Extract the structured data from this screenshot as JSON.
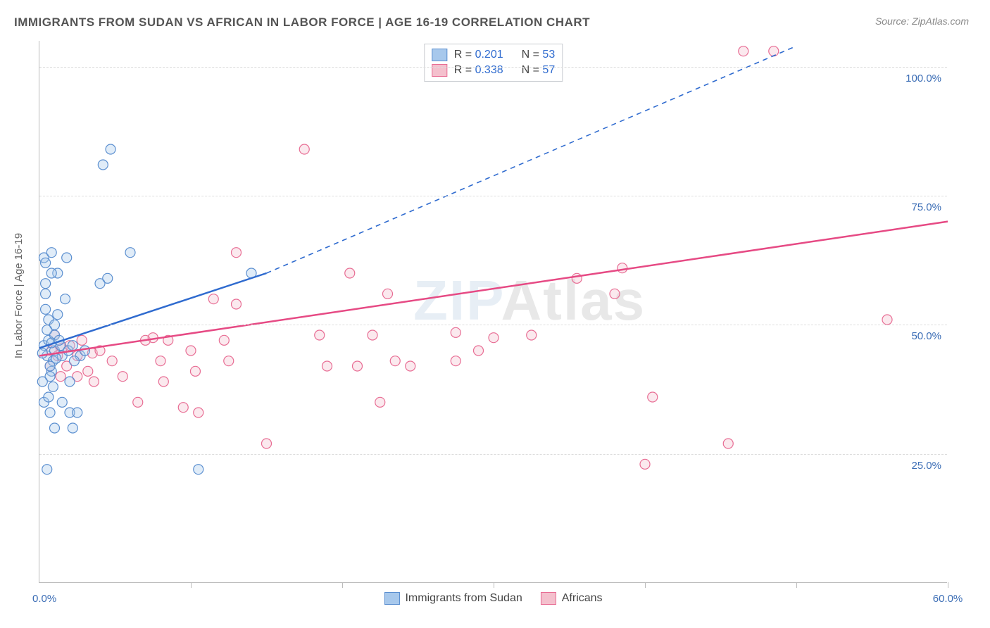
{
  "title": "IMMIGRANTS FROM SUDAN VS AFRICAN IN LABOR FORCE | AGE 16-19 CORRELATION CHART",
  "source": "Source: ZipAtlas.com",
  "ylabel": "In Labor Force | Age 16-19",
  "watermark_a": "ZIP",
  "watermark_b": "Atlas",
  "chart": {
    "type": "scatter",
    "xlim": [
      0,
      60
    ],
    "ylim": [
      0,
      105
    ],
    "x_ticks": [
      0,
      10,
      20,
      30,
      40,
      50,
      60
    ],
    "y_gridlines": [
      25,
      50,
      75,
      100
    ],
    "x_labels": [
      {
        "v": 0,
        "t": "0.0%"
      },
      {
        "v": 60,
        "t": "60.0%"
      }
    ],
    "y_labels": [
      {
        "v": 25,
        "t": "25.0%"
      },
      {
        "v": 50,
        "t": "50.0%"
      },
      {
        "v": 75,
        "t": "75.0%"
      },
      {
        "v": 100,
        "t": "100.0%"
      }
    ],
    "background_color": "#ffffff",
    "grid_color": "#dddddd",
    "marker_radius": 7,
    "series": [
      {
        "name": "Immigrants from Sudan",
        "key": "sudan",
        "color_fill": "#a7c8ec",
        "color_stroke": "#5b8fd0",
        "r_label": "0.201",
        "n_label": "53",
        "trend": {
          "x1": 0,
          "y1": 45.5,
          "x2": 15,
          "y2": 60,
          "dash_to_x": 50,
          "dash_to_y": 104,
          "color": "#2f6bcf",
          "width": 2.5
        },
        "points": [
          [
            0.3,
            46
          ],
          [
            0.5,
            44
          ],
          [
            0.6,
            47
          ],
          [
            0.8,
            41
          ],
          [
            0.9,
            43
          ],
          [
            1.0,
            45
          ],
          [
            1.0,
            48
          ],
          [
            0.6,
            51
          ],
          [
            0.4,
            53
          ],
          [
            1.2,
            52
          ],
          [
            0.7,
            40
          ],
          [
            0.9,
            38
          ],
          [
            1.5,
            44
          ],
          [
            1.4,
            46
          ],
          [
            0.3,
            63
          ],
          [
            0.8,
            64
          ],
          [
            1.8,
            63
          ],
          [
            1.2,
            60
          ],
          [
            1.9,
            45
          ],
          [
            2.2,
            46
          ],
          [
            2.0,
            39
          ],
          [
            2.0,
            33
          ],
          [
            2.5,
            33
          ],
          [
            2.7,
            44
          ],
          [
            0.3,
            35
          ],
          [
            0.7,
            33
          ],
          [
            1.5,
            35
          ],
          [
            1.0,
            30
          ],
          [
            0.5,
            22
          ],
          [
            2.2,
            30
          ],
          [
            4.5,
            59
          ],
          [
            4.7,
            84
          ],
          [
            4.2,
            81
          ],
          [
            4.0,
            58
          ],
          [
            6.0,
            64
          ],
          [
            10.5,
            22
          ],
          [
            14.0,
            60
          ],
          [
            0.4,
            56
          ],
          [
            1.7,
            55
          ],
          [
            0.8,
            46.5
          ],
          [
            1.1,
            43.5
          ],
          [
            0.2,
            44.5
          ],
          [
            0.5,
            49
          ],
          [
            0.7,
            42
          ],
          [
            1.0,
            50
          ],
          [
            0.6,
            36
          ],
          [
            1.3,
            47
          ],
          [
            2.3,
            43
          ],
          [
            3.0,
            45
          ],
          [
            0.8,
            60
          ],
          [
            0.4,
            62
          ],
          [
            0.4,
            58
          ],
          [
            0.2,
            39
          ]
        ]
      },
      {
        "name": "Africans",
        "key": "africans",
        "color_fill": "#f4c0cd",
        "color_stroke": "#e86d94",
        "r_label": "0.338",
        "n_label": "57",
        "trend": {
          "x1": 0,
          "y1": 44,
          "x2": 60,
          "y2": 70,
          "color": "#e64a84",
          "width": 2.5
        },
        "points": [
          [
            0.8,
            45
          ],
          [
            1.2,
            44
          ],
          [
            1.5,
            45.5
          ],
          [
            1.0,
            48
          ],
          [
            2.0,
            46
          ],
          [
            2.5,
            44
          ],
          [
            2.5,
            40
          ],
          [
            3.2,
            41
          ],
          [
            3.6,
            39
          ],
          [
            3.5,
            44.5
          ],
          [
            4.0,
            45
          ],
          [
            4.8,
            43
          ],
          [
            5.5,
            40
          ],
          [
            6.5,
            35
          ],
          [
            7.0,
            47
          ],
          [
            7.5,
            47.5
          ],
          [
            8.0,
            43
          ],
          [
            8.2,
            39
          ],
          [
            8.5,
            47
          ],
          [
            9.5,
            34
          ],
          [
            10.0,
            45
          ],
          [
            10.3,
            41
          ],
          [
            10.5,
            33
          ],
          [
            11.5,
            55
          ],
          [
            12.2,
            47
          ],
          [
            12.5,
            43
          ],
          [
            13.0,
            54
          ],
          [
            13.0,
            64
          ],
          [
            15.0,
            27
          ],
          [
            17.5,
            84
          ],
          [
            18.5,
            48
          ],
          [
            19.0,
            42
          ],
          [
            20.5,
            60
          ],
          [
            21.0,
            42
          ],
          [
            22.5,
            35
          ],
          [
            22.0,
            48
          ],
          [
            23.0,
            56
          ],
          [
            23.5,
            43
          ],
          [
            24.5,
            42
          ],
          [
            27.5,
            43
          ],
          [
            27.5,
            48.5
          ],
          [
            29.0,
            45
          ],
          [
            30.0,
            47.5
          ],
          [
            32.5,
            48
          ],
          [
            35.5,
            59
          ],
          [
            38.0,
            56
          ],
          [
            38.5,
            61
          ],
          [
            40.0,
            23
          ],
          [
            40.5,
            36
          ],
          [
            45.5,
            27
          ],
          [
            46.5,
            103
          ],
          [
            48.5,
            103
          ],
          [
            56.0,
            51
          ],
          [
            1.8,
            42
          ],
          [
            2.8,
            47
          ],
          [
            0.7,
            42
          ],
          [
            1.4,
            40
          ]
        ]
      }
    ]
  },
  "legend_bottom": {
    "items": [
      {
        "label": "Immigrants from Sudan",
        "fill": "#a7c8ec",
        "stroke": "#5b8fd0"
      },
      {
        "label": "Africans",
        "fill": "#f4c0cd",
        "stroke": "#e86d94"
      }
    ]
  },
  "legend_top": {
    "r_prefix": "R = ",
    "n_prefix": "N = ",
    "value_color": "#2f6bcf"
  }
}
